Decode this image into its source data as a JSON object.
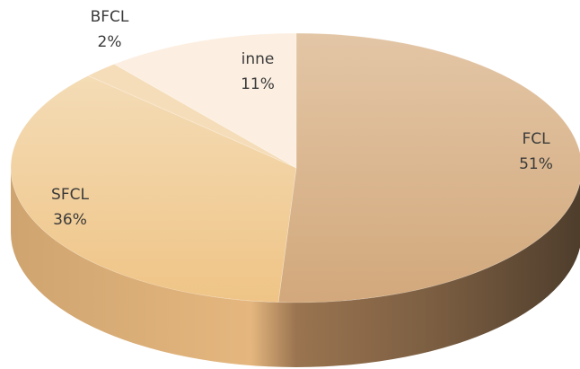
{
  "chart_data": {
    "type": "pie",
    "categories": [
      "FCL",
      "SFCL",
      "BFCL",
      "inne"
    ],
    "values": [
      51,
      36,
      2,
      11
    ],
    "value_labels": [
      "51%",
      "36%",
      "2%",
      "11%"
    ],
    "three_d": true,
    "legend": "none",
    "colors": {
      "FCL": "#d9b48f",
      "SFCL": "#f2cc94",
      "BFCL": "#f6ddba",
      "inne": "#fcefe1"
    }
  }
}
